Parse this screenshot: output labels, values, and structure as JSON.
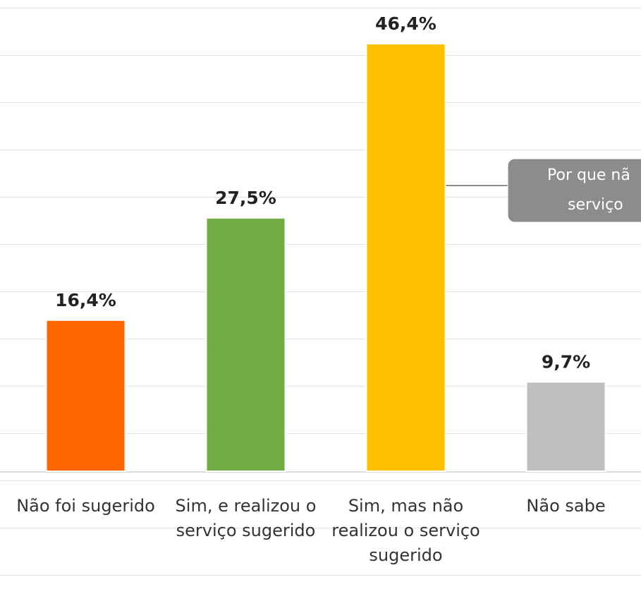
{
  "chart_data": {
    "type": "bar",
    "categories": [
      "Não foi sugerido",
      "Sim, e realizou o serviço sugerido",
      "Sim, mas não realizou o serviço sugerido",
      "Não sabe"
    ],
    "values": [
      16.4,
      27.5,
      46.4,
      9.7
    ],
    "value_labels": [
      "16,4%",
      "27,5%",
      "46,4%",
      "9,7%"
    ],
    "colors": [
      "#ff6600",
      "#70ad47",
      "#ffc000",
      "#bfbfbf"
    ],
    "ylim": [
      0,
      50
    ],
    "annotation": [
      "Por que nã",
      "serviço"
    ]
  }
}
